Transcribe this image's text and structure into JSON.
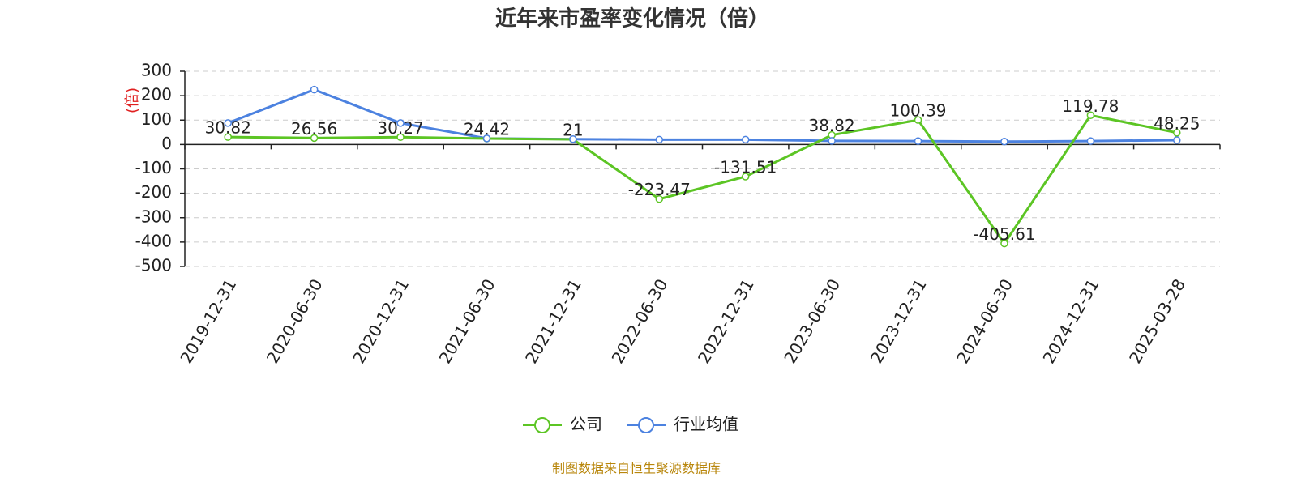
{
  "chart_data": {
    "type": "line",
    "title": "近年来市盈率变化情况（倍）",
    "y_label": "(倍)",
    "source": "制图数据来自恒生聚源数据库",
    "categories": [
      "2019-12-31",
      "2020-06-30",
      "2020-12-31",
      "2021-06-30",
      "2021-12-31",
      "2022-06-30",
      "2022-12-31",
      "2023-06-30",
      "2023-12-31",
      "2024-06-30",
      "2024-12-31",
      "2025-03-28"
    ],
    "series": [
      {
        "name": "公司",
        "color": "#5cc524",
        "values": [
          30.82,
          26.56,
          30.27,
          24.42,
          21,
          -223.47,
          -131.51,
          38.82,
          100.39,
          -405.61,
          119.78,
          48.25
        ],
        "labels": true
      },
      {
        "name": "行业均值",
        "color": "#4c82e0",
        "values": [
          88,
          225,
          88,
          25,
          22,
          20,
          20,
          15,
          14,
          12,
          14,
          18
        ],
        "labels": false
      }
    ],
    "ylim": [
      -500,
      300
    ],
    "yticks": [
      -500,
      -400,
      -300,
      -200,
      -100,
      0,
      100,
      200,
      300
    ],
    "grid": true,
    "legend": "bottom"
  }
}
